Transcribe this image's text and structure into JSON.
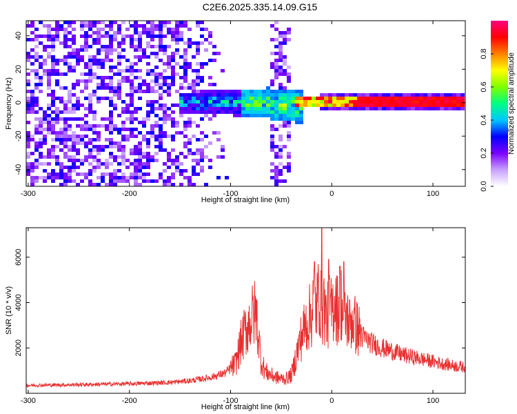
{
  "title": "C2E6.2025.335.14.09.G15",
  "chart_data": [
    {
      "type": "heatmap",
      "xlabel": "Height of straight line (km)",
      "ylabel": "Frequency (Hz)",
      "xlim": [
        -302,
        132
      ],
      "ylim": [
        -50,
        49
      ],
      "xticks": [
        -300,
        -200,
        -100,
        0,
        100
      ],
      "yticks": [
        -40,
        -20,
        0,
        20,
        40
      ],
      "colorbar": {
        "label": "Normalized spectral amplitude",
        "range": [
          0,
          1
        ],
        "ticks": [
          0.0,
          0.2,
          0.4,
          0.6,
          0.8
        ],
        "colors": [
          "#ffffff",
          "#c8a0ff",
          "#7a00ff",
          "#0000ff",
          "#00c8ff",
          "#00ff80",
          "#80ff00",
          "#ffff00",
          "#ff8000",
          "#ff0000",
          "#ff0080"
        ]
      },
      "features": {
        "noise_band_x": [
          -302,
          -100
        ],
        "dense_band_x": [
          -150,
          -30
        ],
        "vertical_stripe_x": [
          -60,
          -40
        ],
        "diagonal_trace": [
          [
            -290,
            49
          ],
          [
            -230,
            -45
          ]
        ],
        "carrier_line": {
          "x": [
            -20,
            132
          ],
          "y": 0
        }
      }
    },
    {
      "type": "line",
      "xlabel": "Height of straight line (km)",
      "ylabel": "SNR (10 * v/v)",
      "xlim": [
        -302,
        132
      ],
      "ylim": [
        0,
        7300
      ],
      "xticks": [
        -300,
        -200,
        -100,
        0,
        100
      ],
      "yticks": [
        2000,
        4000,
        6000
      ],
      "series": [
        {
          "color": "#e83030",
          "x": [
            -302,
            -250,
            -200,
            -160,
            -140,
            -120,
            -105,
            -95,
            -90,
            -85,
            -82,
            -78,
            -75,
            -72,
            -70,
            -68,
            -65,
            -60,
            -55,
            -50,
            -45,
            -40,
            -38,
            -35,
            -30,
            -25,
            -20,
            -18,
            -15,
            -12,
            -10,
            -8,
            -5,
            -2,
            0,
            3,
            6,
            9,
            12,
            15,
            18,
            20,
            22,
            25,
            30,
            40,
            50,
            60,
            70,
            80,
            90,
            100,
            110,
            120,
            132
          ],
          "y": [
            350,
            380,
            420,
            480,
            550,
            700,
            900,
            1300,
            2200,
            2800,
            3100,
            3400,
            3600,
            2400,
            1500,
            1200,
            950,
            800,
            700,
            650,
            650,
            800,
            1100,
            1700,
            2500,
            3100,
            3500,
            4200,
            3800,
            4500,
            3400,
            4000,
            3200,
            3800,
            3500,
            4300,
            3600,
            4100,
            3200,
            3400,
            3000,
            3300,
            3100,
            2900,
            2500,
            2200,
            2000,
            1850,
            1700,
            1600,
            1500,
            1400,
            1300,
            1220,
            1150
          ]
        }
      ]
    }
  ]
}
